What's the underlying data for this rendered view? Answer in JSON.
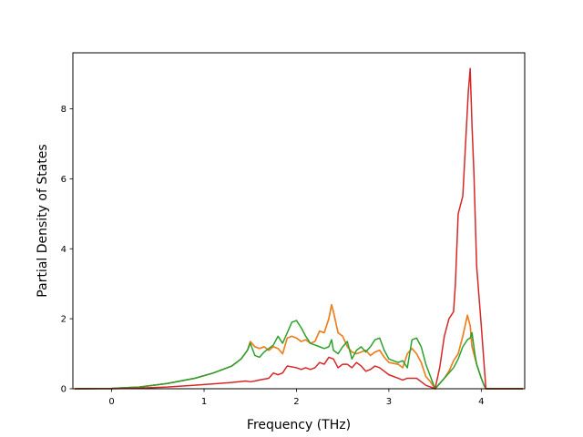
{
  "chart_data": {
    "type": "line",
    "title": "",
    "xlabel": "Frequency (THz)",
    "ylabel": "Partial Density of States",
    "xlim": [
      -0.42,
      4.47
    ],
    "ylim": [
      0,
      9.6
    ],
    "xticks": [
      0,
      1,
      2,
      3,
      4
    ],
    "yticks": [
      0,
      2,
      4,
      6,
      8
    ],
    "grid": false,
    "legend": "none",
    "series": [
      {
        "color": "#1f77b4",
        "x": [
          -0.4,
          0.0,
          0.3,
          0.6,
          0.9,
          1.1,
          1.3,
          1.4,
          1.47,
          1.5,
          1.55,
          1.6,
          1.65,
          1.7,
          1.75,
          1.8,
          1.85,
          1.9,
          1.95,
          2.0,
          2.05,
          2.1,
          2.15,
          2.2,
          2.25,
          2.3,
          2.35,
          2.38,
          2.4,
          2.45,
          2.5,
          2.55,
          2.6,
          2.65,
          2.7,
          2.75,
          2.8,
          2.85,
          2.9,
          2.95,
          3.0,
          3.1,
          3.15,
          3.2,
          3.25,
          3.3,
          3.35,
          3.4,
          3.45,
          3.5,
          3.55,
          3.6,
          3.65,
          3.7,
          3.75,
          3.8,
          3.85,
          3.88,
          3.9,
          3.93,
          3.95,
          4.0,
          4.03,
          4.05,
          4.2,
          4.45
        ],
        "y": [
          0,
          0.01,
          0.05,
          0.15,
          0.3,
          0.45,
          0.65,
          0.85,
          1.1,
          1.35,
          1.2,
          1.15,
          1.2,
          1.1,
          1.2,
          1.15,
          1.0,
          1.45,
          1.5,
          1.45,
          1.35,
          1.4,
          1.3,
          1.35,
          1.65,
          1.6,
          2.0,
          2.4,
          2.2,
          1.6,
          1.5,
          1.2,
          1.05,
          1.0,
          1.05,
          1.1,
          0.95,
          1.05,
          1.1,
          0.9,
          0.75,
          0.7,
          0.6,
          1.0,
          1.15,
          1.0,
          0.75,
          0.35,
          0.2,
          0.0,
          0.15,
          0.3,
          0.5,
          0.8,
          1.0,
          1.5,
          2.1,
          1.8,
          1.2,
          0.9,
          0.7,
          0.3,
          0.1,
          0.0,
          0.0,
          0.0
        ]
      },
      {
        "color": "#ff7f0e",
        "x": [
          -0.4,
          0.0,
          0.3,
          0.6,
          0.9,
          1.1,
          1.3,
          1.4,
          1.47,
          1.5,
          1.55,
          1.6,
          1.65,
          1.7,
          1.75,
          1.8,
          1.85,
          1.9,
          1.95,
          2.0,
          2.05,
          2.1,
          2.15,
          2.2,
          2.25,
          2.3,
          2.35,
          2.38,
          2.4,
          2.45,
          2.5,
          2.55,
          2.6,
          2.65,
          2.7,
          2.75,
          2.8,
          2.85,
          2.9,
          2.95,
          3.0,
          3.1,
          3.15,
          3.2,
          3.25,
          3.3,
          3.35,
          3.4,
          3.45,
          3.5,
          3.55,
          3.6,
          3.65,
          3.7,
          3.75,
          3.8,
          3.85,
          3.88,
          3.9,
          3.93,
          3.95,
          4.0,
          4.03,
          4.05,
          4.2,
          4.45
        ],
        "y": [
          0,
          0.01,
          0.05,
          0.15,
          0.3,
          0.45,
          0.65,
          0.85,
          1.1,
          1.35,
          1.2,
          1.15,
          1.2,
          1.1,
          1.2,
          1.15,
          1.0,
          1.45,
          1.5,
          1.45,
          1.35,
          1.4,
          1.3,
          1.35,
          1.65,
          1.6,
          2.0,
          2.4,
          2.2,
          1.6,
          1.5,
          1.2,
          1.05,
          1.0,
          1.05,
          1.1,
          0.95,
          1.05,
          1.1,
          0.9,
          0.75,
          0.7,
          0.6,
          1.0,
          1.15,
          1.0,
          0.75,
          0.35,
          0.2,
          0.0,
          0.15,
          0.3,
          0.5,
          0.8,
          1.0,
          1.5,
          2.1,
          1.8,
          1.2,
          0.9,
          0.7,
          0.3,
          0.1,
          0.0,
          0.0,
          0.0
        ]
      },
      {
        "color": "#2ca02c",
        "x": [
          -0.4,
          0.0,
          0.3,
          0.6,
          0.9,
          1.1,
          1.3,
          1.4,
          1.47,
          1.5,
          1.55,
          1.6,
          1.65,
          1.7,
          1.75,
          1.8,
          1.85,
          1.9,
          1.95,
          2.0,
          2.05,
          2.1,
          2.15,
          2.2,
          2.25,
          2.3,
          2.35,
          2.38,
          2.4,
          2.45,
          2.5,
          2.55,
          2.6,
          2.65,
          2.7,
          2.75,
          2.8,
          2.85,
          2.9,
          2.95,
          3.0,
          3.1,
          3.15,
          3.2,
          3.25,
          3.3,
          3.35,
          3.4,
          3.45,
          3.5,
          3.55,
          3.6,
          3.65,
          3.7,
          3.75,
          3.8,
          3.85,
          3.88,
          3.9,
          3.93,
          3.95,
          4.0,
          4.03,
          4.05,
          4.2,
          4.45
        ],
        "y": [
          0,
          0.01,
          0.05,
          0.15,
          0.3,
          0.45,
          0.65,
          0.85,
          1.1,
          1.3,
          0.95,
          0.9,
          1.05,
          1.15,
          1.25,
          1.5,
          1.3,
          1.6,
          1.9,
          1.95,
          1.75,
          1.5,
          1.3,
          1.25,
          1.2,
          1.15,
          1.2,
          1.4,
          1.1,
          1.0,
          1.2,
          1.35,
          0.85,
          1.1,
          1.2,
          1.05,
          1.2,
          1.4,
          1.45,
          1.1,
          0.85,
          0.75,
          0.8,
          0.6,
          1.4,
          1.45,
          1.2,
          0.7,
          0.35,
          0.0,
          0.15,
          0.3,
          0.45,
          0.6,
          0.85,
          1.2,
          1.4,
          1.45,
          1.6,
          1.0,
          0.7,
          0.3,
          0.1,
          0.0,
          0.0,
          0.0
        ]
      },
      {
        "color": "#d62728",
        "x": [
          -0.4,
          0.0,
          0.3,
          0.6,
          0.9,
          1.1,
          1.3,
          1.45,
          1.5,
          1.55,
          1.6,
          1.7,
          1.75,
          1.8,
          1.85,
          1.9,
          2.0,
          2.05,
          2.1,
          2.15,
          2.2,
          2.25,
          2.3,
          2.35,
          2.4,
          2.45,
          2.5,
          2.55,
          2.6,
          2.65,
          2.7,
          2.75,
          2.8,
          2.85,
          2.9,
          3.0,
          3.1,
          3.15,
          3.2,
          3.25,
          3.3,
          3.35,
          3.4,
          3.5,
          3.55,
          3.6,
          3.65,
          3.7,
          3.72,
          3.75,
          3.78,
          3.8,
          3.83,
          3.86,
          3.88,
          3.9,
          3.92,
          3.95,
          4.0,
          4.05,
          4.45
        ],
        "y": [
          0,
          0.0,
          0.02,
          0.05,
          0.1,
          0.14,
          0.18,
          0.22,
          0.2,
          0.22,
          0.25,
          0.3,
          0.45,
          0.4,
          0.45,
          0.65,
          0.6,
          0.55,
          0.6,
          0.55,
          0.6,
          0.75,
          0.7,
          0.9,
          0.85,
          0.6,
          0.7,
          0.7,
          0.6,
          0.75,
          0.65,
          0.5,
          0.55,
          0.65,
          0.6,
          0.4,
          0.3,
          0.25,
          0.3,
          0.3,
          0.3,
          0.2,
          0.1,
          0.0,
          0.6,
          1.5,
          2.0,
          2.2,
          3.0,
          5.0,
          5.3,
          5.5,
          7.0,
          8.5,
          9.15,
          7.5,
          6.2,
          3.5,
          1.8,
          0.0,
          0.0
        ]
      }
    ]
  }
}
